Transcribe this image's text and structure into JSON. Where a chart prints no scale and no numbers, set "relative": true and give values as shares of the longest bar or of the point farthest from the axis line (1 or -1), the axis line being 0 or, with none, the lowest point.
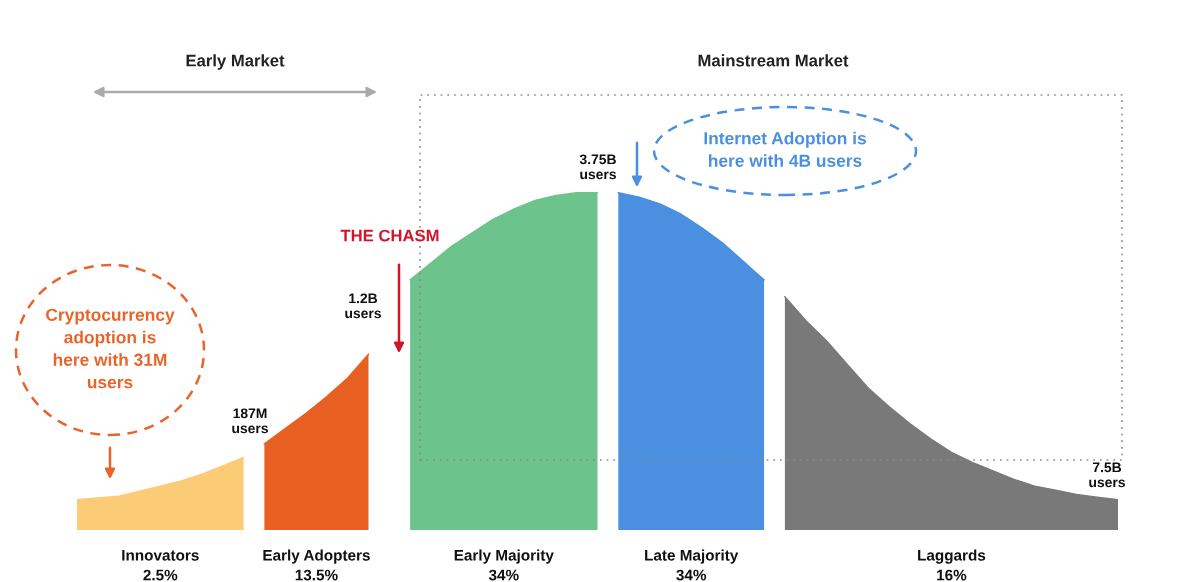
{
  "chart_data": {
    "type": "area",
    "relative": true,
    "categories": [
      null,
      null,
      null,
      null,
      null,
      null,
      null,
      null,
      null,
      null,
      null,
      null,
      null,
      null,
      null,
      null,
      null,
      null,
      null,
      null,
      null,
      null,
      null,
      null,
      null,
      null,
      null,
      null,
      null,
      null,
      null,
      null,
      null,
      null,
      null,
      null,
      null,
      null,
      null,
      null,
      null,
      null,
      null,
      null,
      null,
      null,
      null,
      null,
      null,
      null,
      null
    ],
    "series": [
      {
        "name": "Innovators\n2.5%",
        "color": "#fccb76",
        "values": [
          0.09,
          0.095,
          0.1,
          0.115,
          0.13,
          0.145,
          0.165,
          0.19,
          0.215,
          null,
          null,
          null,
          null,
          null,
          null,
          null,
          null,
          null,
          null,
          null,
          null,
          null,
          null,
          null,
          null,
          null,
          null,
          null,
          null,
          null,
          null,
          null,
          null,
          null,
          null,
          null,
          null,
          null,
          null,
          null,
          null,
          null,
          null,
          null,
          null,
          null,
          null,
          null,
          null,
          null,
          null
        ]
      },
      {
        "name": "Early Adopters\n13.5%",
        "color": "#e85f22",
        "values": [
          null,
          null,
          null,
          null,
          null,
          null,
          null,
          null,
          null,
          0.255,
          0.3,
          0.345,
          0.395,
          0.45,
          0.52,
          null,
          null,
          null,
          null,
          null,
          null,
          null,
          null,
          null,
          null,
          null,
          null,
          null,
          null,
          null,
          null,
          null,
          null,
          null,
          null,
          null,
          null,
          null,
          null,
          null,
          null,
          null,
          null,
          null,
          null,
          null,
          null,
          null,
          null,
          null,
          null
        ]
      },
      {
        "name": "Early Majority\n34%",
        "color": "#6cc38c",
        "values": [
          null,
          null,
          null,
          null,
          null,
          null,
          null,
          null,
          null,
          null,
          null,
          null,
          null,
          null,
          null,
          null,
          0.74,
          0.79,
          0.84,
          0.88,
          0.92,
          0.95,
          0.975,
          0.99,
          0.998,
          1,
          null,
          null,
          null,
          null,
          null,
          null,
          null,
          null,
          null,
          null,
          null,
          null,
          null,
          null,
          null,
          null,
          null,
          null,
          null,
          null,
          null,
          null,
          null,
          null,
          null
        ]
      },
      {
        "name": "Late Majority\n34%",
        "color": "#4a8fe0",
        "values": [
          null,
          null,
          null,
          null,
          null,
          null,
          null,
          null,
          null,
          null,
          null,
          null,
          null,
          null,
          null,
          null,
          null,
          null,
          null,
          null,
          null,
          null,
          null,
          null,
          null,
          null,
          0.998,
          0.985,
          0.965,
          0.935,
          0.895,
          0.85,
          0.795,
          0.74,
          null,
          null,
          null,
          null,
          null,
          null,
          null,
          null,
          null,
          null,
          null,
          null,
          null,
          null,
          null,
          null,
          null
        ]
      },
      {
        "name": "Laggards\n16%",
        "color": "#797979",
        "values": [
          null,
          null,
          null,
          null,
          null,
          null,
          null,
          null,
          null,
          null,
          null,
          null,
          null,
          null,
          null,
          null,
          null,
          null,
          null,
          null,
          null,
          null,
          null,
          null,
          null,
          null,
          null,
          null,
          null,
          null,
          null,
          null,
          null,
          null,
          0.69,
          0.62,
          0.56,
          0.49,
          0.42,
          0.365,
          0.315,
          0.27,
          0.23,
          0.2,
          0.175,
          0.15,
          0.13,
          0.118,
          0.105,
          0.097,
          0.09
        ]
      }
    ],
    "annotations": [
      "Early Market",
      "Mainstream Market",
      "THE CHASM",
      "Cryptocurrency\nadoption is\nhere with 31M\nusers",
      "Internet Adoption is\nhere with 4B users",
      "187M\nusers",
      "1.2B\nusers",
      "3.75B\nusers",
      "7.5B\nusers"
    ]
  }
}
